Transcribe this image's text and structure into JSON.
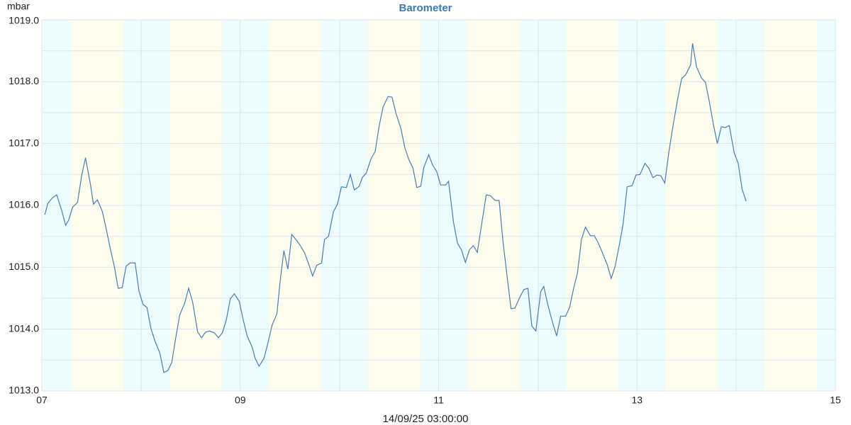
{
  "chart_data": {
    "type": "line",
    "title": "Barometer",
    "y_label": "mbar",
    "x_label": "14/09/25 03:00:00",
    "x": [
      7.03,
      7.06,
      7.11,
      7.15,
      7.2,
      7.24,
      7.27,
      7.31,
      7.36,
      7.4,
      7.44,
      7.49,
      7.52,
      7.56,
      7.61,
      7.64,
      7.69,
      7.73,
      7.77,
      7.81,
      7.85,
      7.89,
      7.94,
      7.98,
      8.02,
      8.06,
      8.1,
      8.14,
      8.19,
      8.23,
      8.27,
      8.31,
      8.35,
      8.39,
      8.44,
      8.48,
      8.52,
      8.57,
      8.61,
      8.65,
      8.69,
      8.74,
      8.78,
      8.82,
      8.86,
      8.9,
      8.94,
      8.99,
      9.03,
      9.07,
      9.12,
      9.15,
      9.19,
      9.24,
      9.28,
      9.32,
      9.37,
      9.4,
      9.44,
      9.48,
      9.52,
      9.57,
      9.61,
      9.65,
      9.69,
      9.73,
      9.77,
      9.82,
      9.85,
      9.89,
      9.94,
      9.98,
      10.02,
      10.07,
      10.11,
      10.15,
      10.2,
      10.23,
      10.27,
      10.32,
      10.36,
      10.4,
      10.44,
      10.49,
      10.53,
      10.57,
      10.62,
      10.66,
      10.7,
      10.74,
      10.78,
      10.82,
      10.85,
      10.9,
      10.94,
      10.98,
      11.02,
      11.07,
      11.1,
      11.15,
      11.19,
      11.23,
      11.27,
      11.31,
      11.35,
      11.39,
      11.44,
      11.48,
      11.52,
      11.57,
      11.61,
      11.65,
      11.69,
      11.73,
      11.77,
      11.82,
      11.86,
      11.9,
      11.94,
      11.98,
      12.03,
      12.06,
      12.1,
      12.15,
      12.19,
      12.23,
      12.28,
      12.32,
      12.36,
      12.4,
      12.44,
      12.48,
      12.53,
      12.57,
      12.61,
      12.65,
      12.7,
      12.74,
      12.78,
      12.83,
      12.86,
      12.9,
      12.95,
      12.99,
      13.03,
      13.08,
      13.12,
      13.16,
      13.2,
      13.24,
      13.28,
      13.32,
      13.36,
      13.41,
      13.45,
      13.49,
      13.54,
      13.56,
      13.6,
      13.65,
      13.69,
      13.73,
      13.77,
      13.81,
      13.85,
      13.89,
      13.93,
      13.98,
      14.02,
      14.06,
      14.1
    ],
    "series": [
      {
        "name": "Barometer",
        "color": "#4a7db3",
        "values": [
          1015.85,
          1016.03,
          1016.13,
          1016.17,
          1015.92,
          1015.68,
          1015.76,
          1015.97,
          1016.05,
          1016.47,
          1016.77,
          1016.34,
          1016.02,
          1016.09,
          1015.9,
          1015.69,
          1015.3,
          1015.02,
          1014.66,
          1014.67,
          1015.02,
          1015.07,
          1015.07,
          1014.61,
          1014.4,
          1014.35,
          1014.01,
          1013.81,
          1013.61,
          1013.3,
          1013.33,
          1013.46,
          1013.86,
          1014.23,
          1014.42,
          1014.66,
          1014.44,
          1013.96,
          1013.86,
          1013.95,
          1013.97,
          1013.94,
          1013.86,
          1013.94,
          1014.15,
          1014.49,
          1014.57,
          1014.45,
          1014.15,
          1013.89,
          1013.71,
          1013.53,
          1013.4,
          1013.53,
          1013.78,
          1014.06,
          1014.25,
          1014.74,
          1015.27,
          1014.97,
          1015.53,
          1015.43,
          1015.34,
          1015.23,
          1015.05,
          1014.86,
          1015.03,
          1015.07,
          1015.45,
          1015.5,
          1015.9,
          1016.02,
          1016.3,
          1016.29,
          1016.5,
          1016.25,
          1016.31,
          1016.45,
          1016.52,
          1016.76,
          1016.87,
          1017.28,
          1017.59,
          1017.76,
          1017.75,
          1017.49,
          1017.24,
          1016.93,
          1016.74,
          1016.61,
          1016.29,
          1016.31,
          1016.61,
          1016.82,
          1016.65,
          1016.55,
          1016.33,
          1016.33,
          1016.39,
          1015.73,
          1015.39,
          1015.28,
          1015.08,
          1015.28,
          1015.35,
          1015.24,
          1015.76,
          1016.17,
          1016.16,
          1016.08,
          1016.08,
          1015.4,
          1014.86,
          1014.33,
          1014.34,
          1014.52,
          1014.64,
          1014.66,
          1014.05,
          1013.97,
          1014.61,
          1014.69,
          1014.4,
          1014.1,
          1013.89,
          1014.21,
          1014.21,
          1014.35,
          1014.65,
          1014.91,
          1015.45,
          1015.65,
          1015.51,
          1015.51,
          1015.39,
          1015.24,
          1015.04,
          1014.82,
          1015.02,
          1015.43,
          1015.7,
          1016.3,
          1016.32,
          1016.49,
          1016.5,
          1016.68,
          1016.6,
          1016.45,
          1016.49,
          1016.48,
          1016.36,
          1016.85,
          1017.26,
          1017.72,
          1018.05,
          1018.11,
          1018.27,
          1018.62,
          1018.24,
          1018.06,
          1017.99,
          1017.67,
          1017.31,
          1017.0,
          1017.27,
          1017.26,
          1017.29,
          1016.85,
          1016.68,
          1016.26,
          1016.07
        ]
      }
    ],
    "xlim": [
      7,
      15
    ],
    "xticks": [
      {
        "value": 7,
        "label": "07"
      },
      {
        "value": 9,
        "label": "09"
      },
      {
        "value": 11,
        "label": "11"
      },
      {
        "value": 13,
        "label": "13"
      },
      {
        "value": 15,
        "label": "15"
      }
    ],
    "ylim": [
      1013,
      1019
    ],
    "yticks": [
      {
        "value": 1013,
        "label": "1013.0"
      },
      {
        "value": 1014,
        "label": "1014.0"
      },
      {
        "value": 1015,
        "label": "1015.0"
      },
      {
        "value": 1016,
        "label": "1016.0"
      },
      {
        "value": 1017,
        "label": "1017.0"
      },
      {
        "value": 1018,
        "label": "1018.0"
      },
      {
        "value": 1019,
        "label": "1019.0"
      }
    ],
    "grid": true
  }
}
